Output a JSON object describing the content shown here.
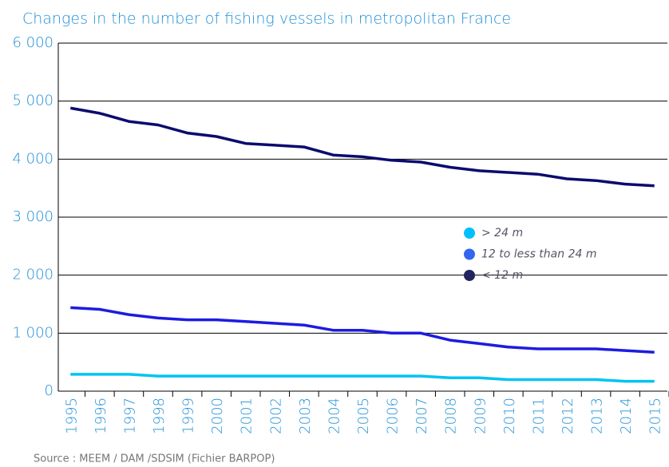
{
  "chart_data": {
    "type": "line",
    "title": "Changes in the number of fishing vessels in metropolitan France",
    "source": "Source : MEEM / DAM /SDSIM   (Fichier BARPOP)",
    "categories": [
      "1995",
      "1996",
      "1997",
      "1998",
      "1999",
      "2000",
      "2001",
      "2002",
      "2003",
      "2004",
      "2005",
      "2006",
      "2007",
      "2008",
      "2009",
      "2010",
      "2011",
      "2012",
      "2013",
      "2014",
      "2015"
    ],
    "series": [
      {
        "name": "> 24 m",
        "color": "#00c4f2",
        "legend_color": "#00bfff",
        "values": [
          290,
          290,
          290,
          260,
          260,
          260,
          260,
          260,
          260,
          260,
          260,
          260,
          260,
          230,
          230,
          200,
          200,
          200,
          200,
          170,
          170
        ]
      },
      {
        "name": "12 to less than 24 m",
        "color": "#1c1ce0",
        "legend_color": "#3366ee",
        "values": [
          1440,
          1410,
          1320,
          1260,
          1230,
          1230,
          1200,
          1170,
          1140,
          1050,
          1050,
          1000,
          1000,
          880,
          820,
          760,
          730,
          730,
          730,
          700,
          670
        ]
      },
      {
        "name": "< 12 m",
        "color": "#0b0b6e",
        "legend_color": "#22245e",
        "values": [
          4880,
          4790,
          4650,
          4590,
          4450,
          4390,
          4270,
          4240,
          4210,
          4070,
          4040,
          3980,
          3950,
          3860,
          3800,
          3770,
          3740,
          3660,
          3630,
          3570,
          3540
        ]
      }
    ],
    "ylim": [
      0,
      6000
    ],
    "yticks": [
      0,
      {
        "value": 1000,
        "label": "1 000"
      },
      {
        "value": 2000,
        "label": "2 000"
      },
      {
        "value": 3000,
        "label": "3 000"
      },
      {
        "value": 4000,
        "label": "4 000"
      },
      {
        "value": 5000,
        "label": "5 000"
      },
      {
        "value": 6000,
        "label": "6 000"
      }
    ],
    "grid": true
  }
}
